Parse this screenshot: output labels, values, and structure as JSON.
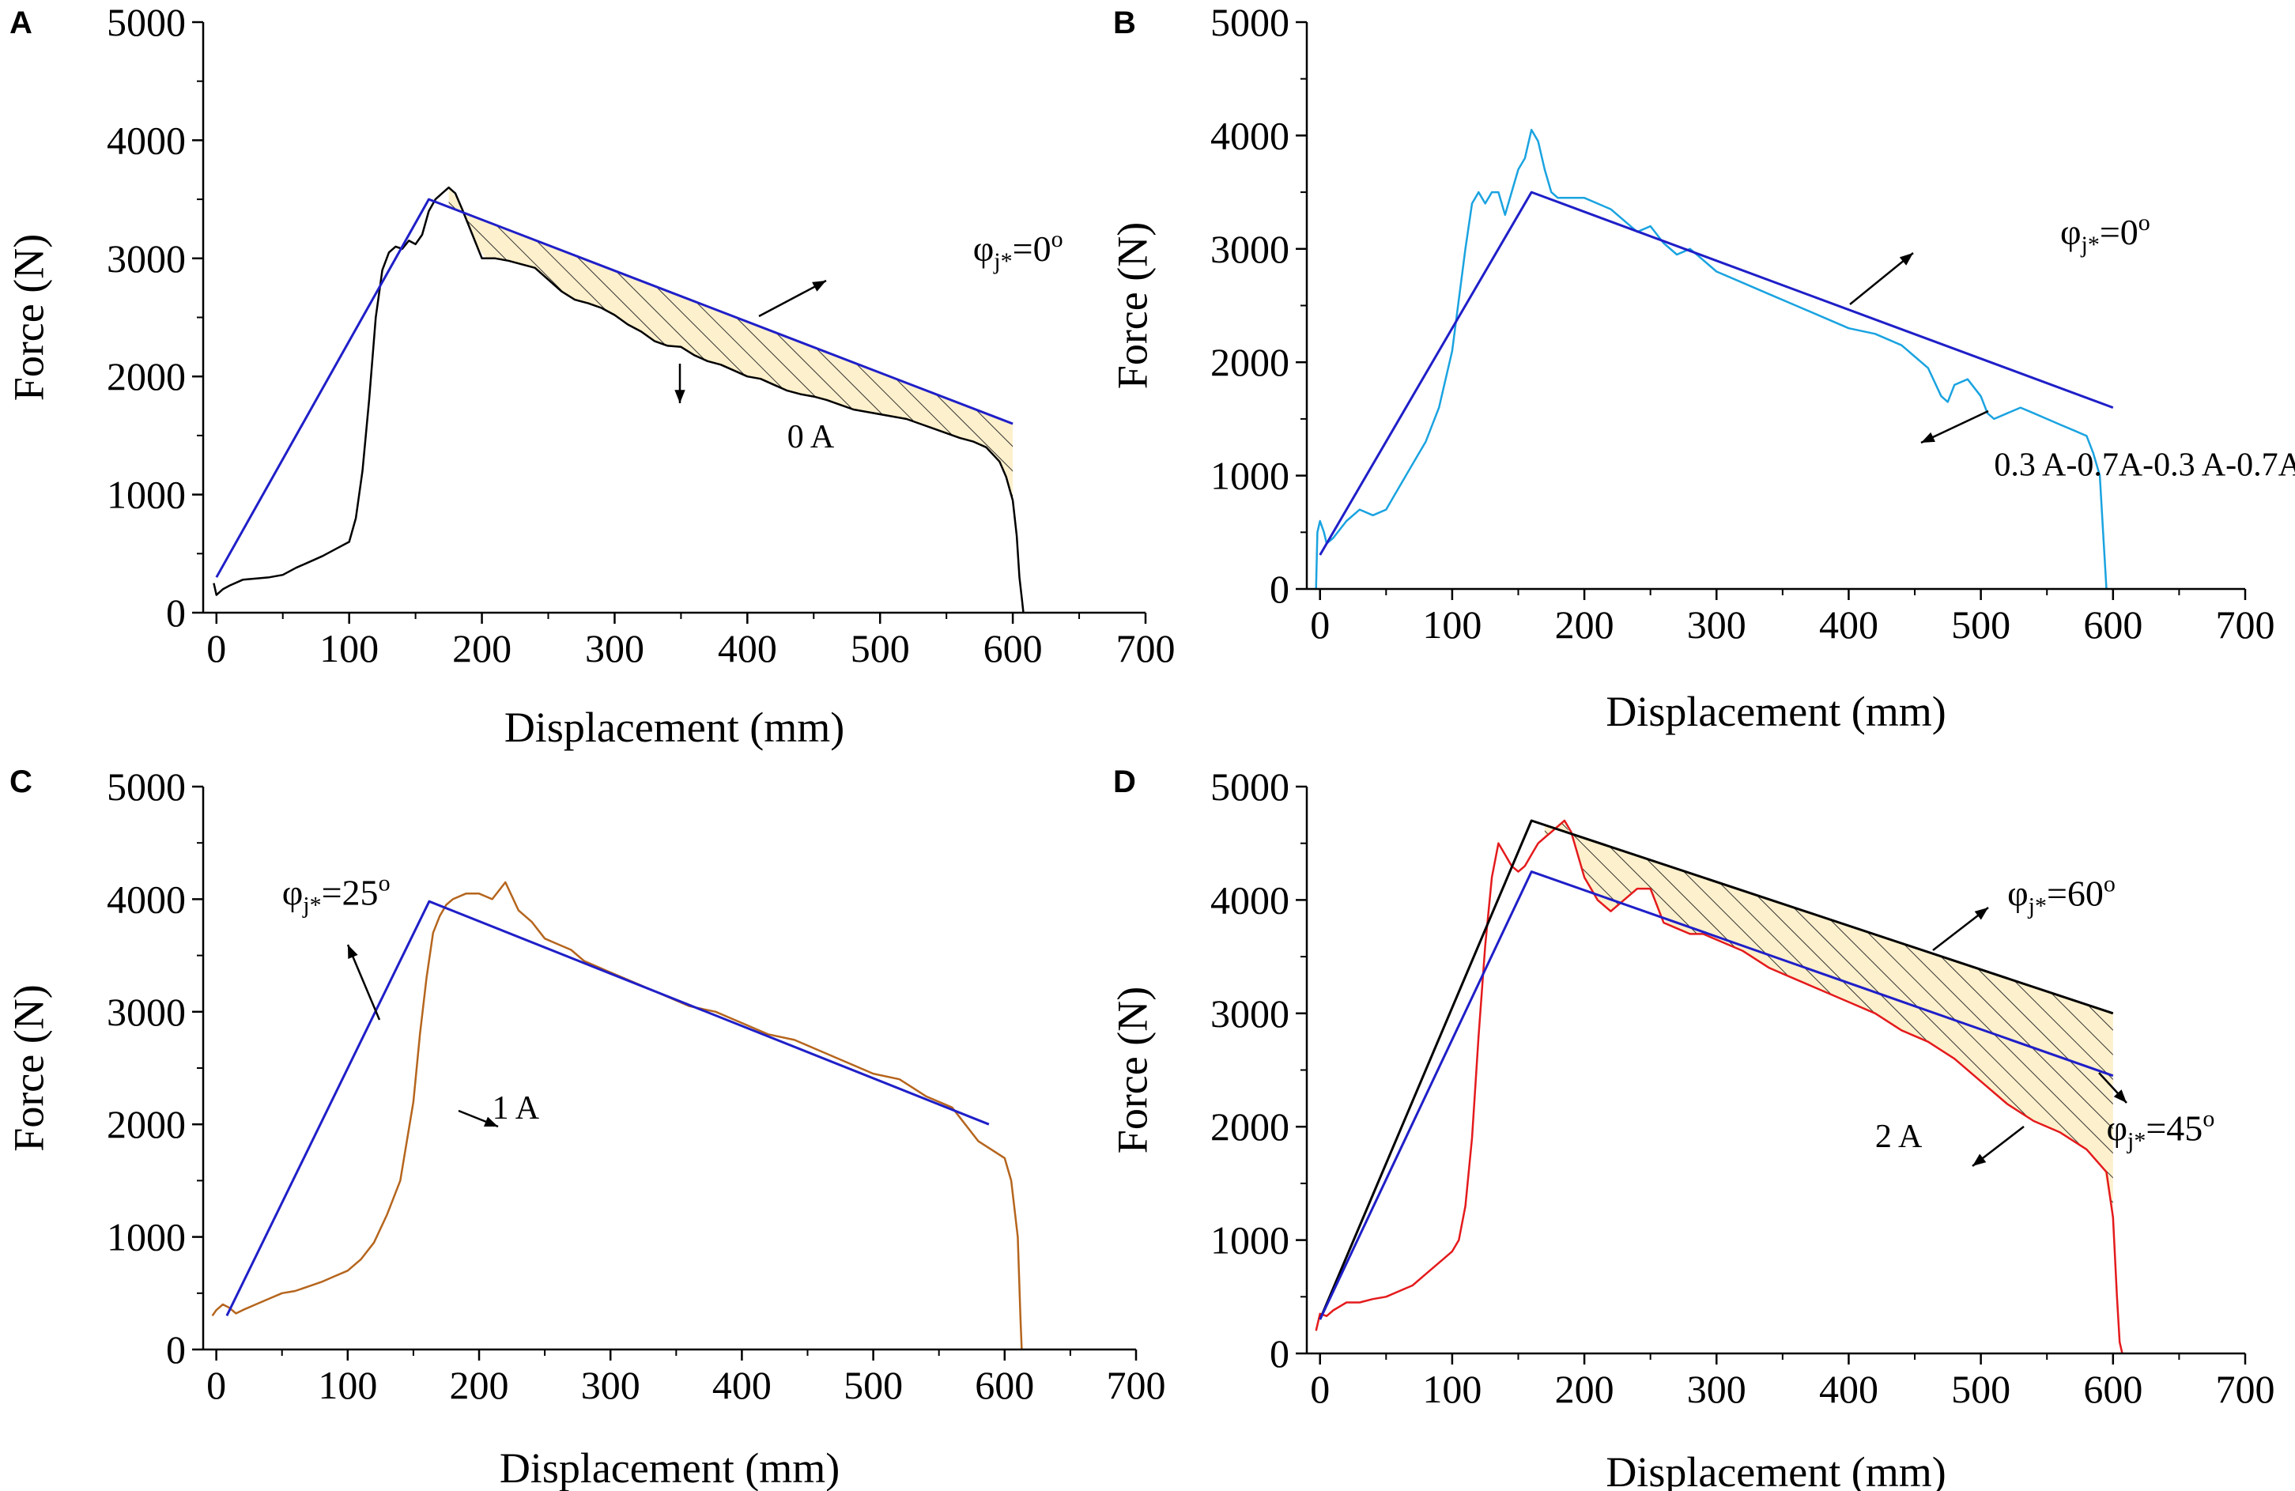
{
  "chart_data": [
    {
      "type": "line",
      "panel": "A",
      "xlabel": "Displacement (mm)",
      "ylabel": "Force (N)",
      "xlim": [
        -10,
        700
      ],
      "ylim": [
        0,
        5000
      ],
      "xticks": [
        0,
        100,
        200,
        300,
        400,
        500,
        600,
        700
      ],
      "yticks": [
        0,
        1000,
        2000,
        3000,
        4000,
        5000
      ],
      "series": [
        {
          "name": "0 A",
          "color": "#000000",
          "width": 2.5,
          "x": [
            -2,
            0,
            5,
            10,
            20,
            30,
            40,
            50,
            60,
            70,
            80,
            90,
            100,
            105,
            110,
            115,
            120,
            125,
            130,
            135,
            140,
            145,
            150,
            155,
            160,
            165,
            170,
            175,
            180,
            185,
            190,
            200,
            210,
            220,
            230,
            240,
            250,
            260,
            270,
            280,
            290,
            300,
            310,
            320,
            330,
            340,
            350,
            360,
            370,
            380,
            390,
            400,
            410,
            420,
            430,
            440,
            450,
            460,
            470,
            480,
            490,
            500,
            510,
            520,
            530,
            540,
            550,
            560,
            570,
            580,
            590,
            595,
            600,
            603,
            605,
            607,
            608
          ],
          "y": [
            250,
            150,
            200,
            230,
            280,
            290,
            300,
            320,
            380,
            430,
            480,
            540,
            600,
            800,
            1200,
            1800,
            2500,
            2900,
            3050,
            3100,
            3080,
            3150,
            3120,
            3200,
            3400,
            3500,
            3550,
            3600,
            3550,
            3420,
            3280,
            3000,
            3000,
            2980,
            2950,
            2920,
            2820,
            2720,
            2650,
            2620,
            2580,
            2520,
            2440,
            2380,
            2300,
            2260,
            2250,
            2180,
            2130,
            2100,
            2050,
            2000,
            1980,
            1930,
            1880,
            1850,
            1830,
            1800,
            1760,
            1720,
            1700,
            1680,
            1660,
            1640,
            1600,
            1560,
            1520,
            1480,
            1450,
            1400,
            1280,
            1150,
            950,
            650,
            300,
            100,
            0
          ]
        },
        {
          "name": "φj*=0o",
          "color": "#1f1fc8",
          "width": 3,
          "x": [
            0,
            160,
            600
          ],
          "y": [
            300,
            3500,
            1600
          ]
        }
      ],
      "shade": {
        "x_from": 175,
        "x_to": 600
      },
      "annotations": [
        {
          "label_text": "0 A",
          "x": 430,
          "y": 1400
        },
        {
          "label_main": "φ",
          "label_sub": "j*",
          "label_rest": "=0",
          "label_sup": "o",
          "x": 570,
          "y": 2980
        }
      ]
    },
    {
      "type": "line",
      "panel": "B",
      "xlabel": "Displacement (mm)",
      "ylabel": "Force (N)",
      "xlim": [
        -10,
        700
      ],
      "ylim": [
        0,
        5000
      ],
      "xticks": [
        0,
        100,
        200,
        300,
        400,
        500,
        600,
        700
      ],
      "yticks": [
        0,
        1000,
        2000,
        3000,
        4000,
        5000
      ],
      "series": [
        {
          "name": "0.3 A-0.7A-0.3 A-0.7A",
          "color": "#1aa3e0",
          "width": 2.5,
          "x": [
            -3,
            -2,
            0,
            3,
            5,
            10,
            20,
            30,
            40,
            50,
            60,
            70,
            80,
            90,
            100,
            110,
            115,
            120,
            125,
            130,
            135,
            140,
            145,
            150,
            155,
            160,
            165,
            170,
            175,
            180,
            190,
            200,
            220,
            240,
            250,
            260,
            270,
            280,
            290,
            300,
            320,
            340,
            360,
            380,
            400,
            420,
            440,
            460,
            470,
            475,
            480,
            490,
            500,
            505,
            510,
            520,
            530,
            540,
            550,
            560,
            570,
            580,
            585,
            590,
            593,
            595
          ],
          "y": [
            0,
            500,
            600,
            500,
            400,
            450,
            600,
            700,
            650,
            700,
            900,
            1100,
            1300,
            1600,
            2100,
            3000,
            3400,
            3500,
            3400,
            3500,
            3500,
            3300,
            3500,
            3700,
            3800,
            4050,
            3950,
            3700,
            3500,
            3450,
            3450,
            3450,
            3350,
            3150,
            3200,
            3050,
            2950,
            3000,
            2900,
            2800,
            2700,
            2600,
            2500,
            2400,
            2300,
            2250,
            2150,
            1950,
            1700,
            1650,
            1800,
            1850,
            1700,
            1550,
            1500,
            1550,
            1600,
            1550,
            1500,
            1450,
            1400,
            1350,
            1200,
            1000,
            400,
            0
          ]
        },
        {
          "name": "φj*=0o",
          "color": "#1f1fc8",
          "width": 3,
          "x": [
            0,
            160,
            600
          ],
          "y": [
            300,
            3500,
            1600
          ]
        }
      ],
      "annotations": [
        {
          "label_text": "0.3 A-0.7A-0.3 A-0.7A",
          "x": 510,
          "y": 1000
        },
        {
          "label_main": "φ",
          "label_sub": "j*",
          "label_rest": "=0",
          "label_sup": "o",
          "x": 560,
          "y": 3040
        }
      ]
    },
    {
      "type": "line",
      "panel": "C",
      "xlabel": "Displacement (mm)",
      "ylabel": "Force (N)",
      "xlim": [
        -10,
        700
      ],
      "ylim": [
        0,
        5000
      ],
      "xticks": [
        0,
        100,
        200,
        300,
        400,
        500,
        600,
        700
      ],
      "yticks": [
        0,
        1000,
        2000,
        3000,
        4000,
        5000
      ],
      "series": [
        {
          "name": "1 A",
          "color": "#b5651d",
          "width": 2.5,
          "x": [
            -3,
            0,
            5,
            10,
            15,
            20,
            30,
            40,
            50,
            60,
            70,
            80,
            90,
            100,
            110,
            120,
            130,
            140,
            150,
            155,
            160,
            165,
            170,
            175,
            180,
            190,
            200,
            210,
            220,
            230,
            240,
            250,
            260,
            270,
            280,
            300,
            320,
            340,
            360,
            380,
            400,
            420,
            440,
            460,
            480,
            500,
            520,
            540,
            560,
            580,
            600,
            605,
            610,
            612,
            613
          ],
          "y": [
            300,
            350,
            400,
            370,
            320,
            350,
            400,
            450,
            500,
            520,
            560,
            600,
            650,
            700,
            800,
            950,
            1200,
            1500,
            2200,
            2800,
            3300,
            3700,
            3850,
            3950,
            4000,
            4050,
            4050,
            4000,
            4150,
            3900,
            3800,
            3650,
            3600,
            3550,
            3450,
            3350,
            3250,
            3150,
            3050,
            3000,
            2900,
            2800,
            2750,
            2650,
            2550,
            2450,
            2400,
            2250,
            2150,
            1850,
            1700,
            1500,
            1000,
            300,
            0
          ]
        },
        {
          "name": "φj*=25o",
          "color": "#1f1fc8",
          "width": 3,
          "x": [
            8,
            162,
            588
          ],
          "y": [
            300,
            3980,
            2000
          ]
        }
      ],
      "annotations": [
        {
          "label_text": "1 A",
          "x": 210,
          "y": 2050
        },
        {
          "label_main": "φ",
          "label_sub": "j*",
          "label_rest": "=25",
          "label_sup": "o",
          "x": 50,
          "y": 3950
        }
      ]
    },
    {
      "type": "line",
      "panel": "D",
      "xlabel": "Displacement (mm)",
      "ylabel": "Force (N)",
      "xlim": [
        -10,
        700
      ],
      "ylim": [
        0,
        5000
      ],
      "xticks": [
        0,
        100,
        200,
        300,
        400,
        500,
        600,
        700
      ],
      "yticks": [
        0,
        1000,
        2000,
        3000,
        4000,
        5000
      ],
      "series": [
        {
          "name": "2 A",
          "color": "#e41a1c",
          "width": 2.5,
          "x": [
            -3,
            0,
            5,
            10,
            20,
            30,
            40,
            50,
            60,
            70,
            80,
            90,
            100,
            105,
            110,
            115,
            120,
            125,
            130,
            135,
            140,
            145,
            150,
            155,
            160,
            165,
            170,
            175,
            180,
            185,
            190,
            200,
            210,
            220,
            230,
            240,
            250,
            260,
            270,
            280,
            290,
            300,
            320,
            340,
            360,
            380,
            400,
            420,
            440,
            460,
            480,
            500,
            520,
            540,
            560,
            580,
            595,
            600,
            603,
            605,
            607
          ],
          "y": [
            200,
            350,
            330,
            380,
            450,
            450,
            480,
            500,
            550,
            600,
            700,
            800,
            900,
            1000,
            1300,
            1900,
            2800,
            3600,
            4200,
            4500,
            4400,
            4300,
            4250,
            4300,
            4400,
            4500,
            4550,
            4600,
            4650,
            4700,
            4600,
            4200,
            4000,
            3900,
            4000,
            4100,
            4100,
            3800,
            3750,
            3700,
            3700,
            3650,
            3550,
            3400,
            3300,
            3200,
            3100,
            3000,
            2850,
            2750,
            2600,
            2400,
            2200,
            2050,
            1950,
            1800,
            1600,
            1200,
            500,
            100,
            0
          ]
        },
        {
          "name": "φj*=60o",
          "color": "#000000",
          "width": 3,
          "x": [
            0,
            160,
            600
          ],
          "y": [
            300,
            4700,
            3000
          ]
        },
        {
          "name": "φj*=45o",
          "color": "#1f1fc8",
          "width": 3,
          "x": [
            0,
            160,
            600
          ],
          "y": [
            300,
            4250,
            2450
          ]
        }
      ],
      "shade": {
        "x_from": 170,
        "x_to": 600
      },
      "annotations": [
        {
          "label_text": "2 A",
          "x": 420,
          "y": 1820
        },
        {
          "label_main": "φ",
          "label_sub": "j*",
          "label_rest": "=60",
          "label_sup": "o",
          "x": 520,
          "y": 3950
        },
        {
          "label_main": "φ",
          "label_sub": "j*",
          "label_rest": "=45",
          "label_sup": "o",
          "x": 595,
          "y": 1880
        }
      ]
    }
  ]
}
